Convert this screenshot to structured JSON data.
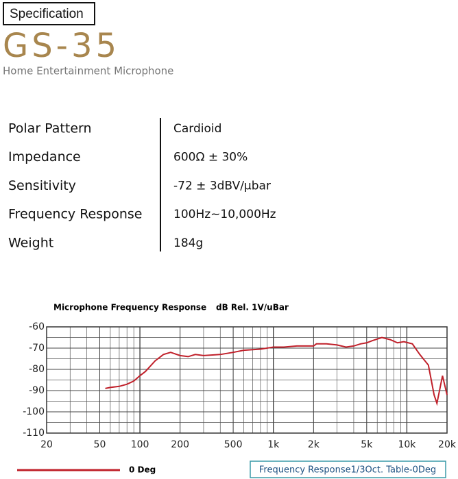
{
  "header": {
    "tag": "Specification",
    "model": "GS-35",
    "subtitle": "Home Entertainment Microphone"
  },
  "specs": [
    {
      "label": "Polar Pattern",
      "value": "Cardioid"
    },
    {
      "label": "Impedance",
      "value": "600Ω ± 30%"
    },
    {
      "label": "Sensitivity",
      "value": "-72 ± 3dBV/μbar"
    },
    {
      "label": "Frequency Response",
      "value": "100Hz~10,000Hz"
    },
    {
      "label": "Weight",
      "value": "184g"
    }
  ],
  "chart_data": {
    "type": "line",
    "title": "Microphone Frequency Response",
    "y_label": "dB Rel. 1V/uBar",
    "x_scale": "log",
    "grid": true,
    "xlim": [
      20,
      20000
    ],
    "xticks": [
      20,
      50,
      100,
      200,
      500,
      {
        "value": 1000,
        "label": "1k"
      },
      {
        "value": 2000,
        "label": "2k"
      },
      {
        "value": 5000,
        "label": "5k"
      },
      {
        "value": 10000,
        "label": "10k"
      },
      {
        "value": 20000,
        "label": "20k"
      }
    ],
    "ylim": [
      -110,
      -60
    ],
    "yticks": [
      -60,
      -70,
      -80,
      -90,
      -100,
      -110
    ],
    "x": [
      55,
      60,
      70,
      80,
      90,
      100,
      110,
      130,
      150,
      170,
      200,
      230,
      260,
      300,
      400,
      500,
      600,
      800,
      1000,
      1200,
      1500,
      2000,
      2100,
      2500,
      3000,
      3500,
      4000,
      4500,
      5000,
      5500,
      6500,
      7500,
      8500,
      9500,
      11000,
      12500,
      14500,
      16000,
      16800,
      18500,
      20000
    ],
    "series": [
      {
        "name": "0 Deg",
        "color": "#c0202a",
        "values": [
          -89,
          -88.5,
          -88,
          -87,
          -85.5,
          -83,
          -81,
          -76,
          -73,
          -72,
          -73.5,
          -74,
          -73,
          -73.5,
          -73,
          -72,
          -71,
          -70.5,
          -69.5,
          -69.5,
          -69,
          -69,
          -68,
          -68,
          -68.5,
          -69.5,
          -69,
          -68,
          -67.5,
          -66.5,
          -65,
          -66,
          -67.5,
          -67,
          -68,
          -73,
          -78,
          -92,
          -96,
          -83,
          -92
        ]
      }
    ],
    "caption": "Frequency Response1/3Oct. Table-0Deg"
  }
}
